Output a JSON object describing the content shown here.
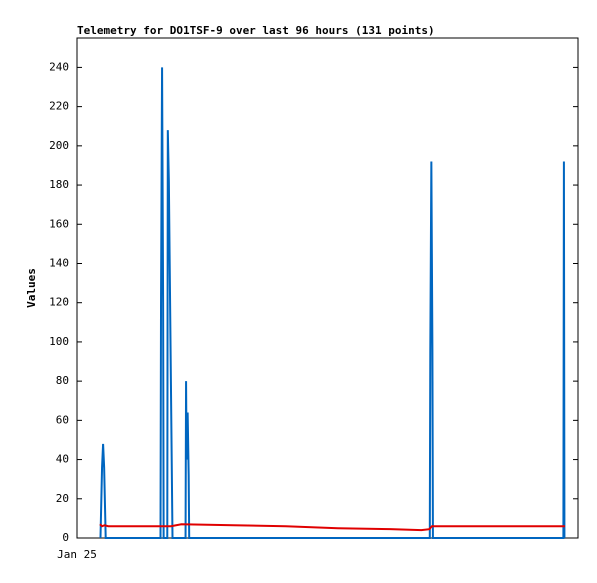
{
  "chart_data": {
    "type": "line",
    "title": "Telemetry for DO1TSF-9 over last 96 hours (131 points)",
    "y_label": "Values",
    "xlim": [
      0,
      96
    ],
    "xticks": [
      {
        "value": 0,
        "label": "Jan 25"
      }
    ],
    "ylim": [
      0,
      255
    ],
    "yticks": [
      0,
      20,
      40,
      60,
      80,
      100,
      120,
      140,
      160,
      180,
      200,
      220,
      240
    ],
    "grid": false,
    "series": [
      {
        "color": "#0066c0",
        "x": [
          4.5,
          4.6,
          4.8,
          5.0,
          5.2,
          5.4,
          5.5,
          16.0,
          16.1,
          16.3,
          16.5,
          16.6,
          17.3,
          17.4,
          17.6,
          17.8,
          18.0,
          18.2,
          18.3,
          20.8,
          20.9,
          21.0,
          21.2,
          21.4,
          21.5,
          67.6,
          67.7,
          67.9,
          68.1,
          68.2,
          93.2,
          93.3,
          93.4
        ],
        "values": [
          0,
          12,
          36,
          48,
          36,
          12,
          0,
          0,
          120,
          240,
          120,
          0,
          0,
          208,
          182,
          130,
          78,
          26,
          0,
          0,
          80,
          40,
          64,
          32,
          0,
          0,
          96,
          192,
          96,
          0,
          0,
          192,
          0
        ]
      },
      {
        "color": "#e00000",
        "x": [
          4.4,
          4.8,
          5.3,
          6,
          8,
          15,
          18,
          20,
          30,
          40,
          50,
          60,
          66,
          67.5,
          68,
          70,
          80,
          93.5
        ],
        "values": [
          7,
          6,
          6.5,
          6,
          6,
          6,
          6,
          7,
          6.5,
          6,
          5,
          4.5,
          4,
          4.5,
          6,
          6,
          6,
          6
        ]
      }
    ]
  }
}
